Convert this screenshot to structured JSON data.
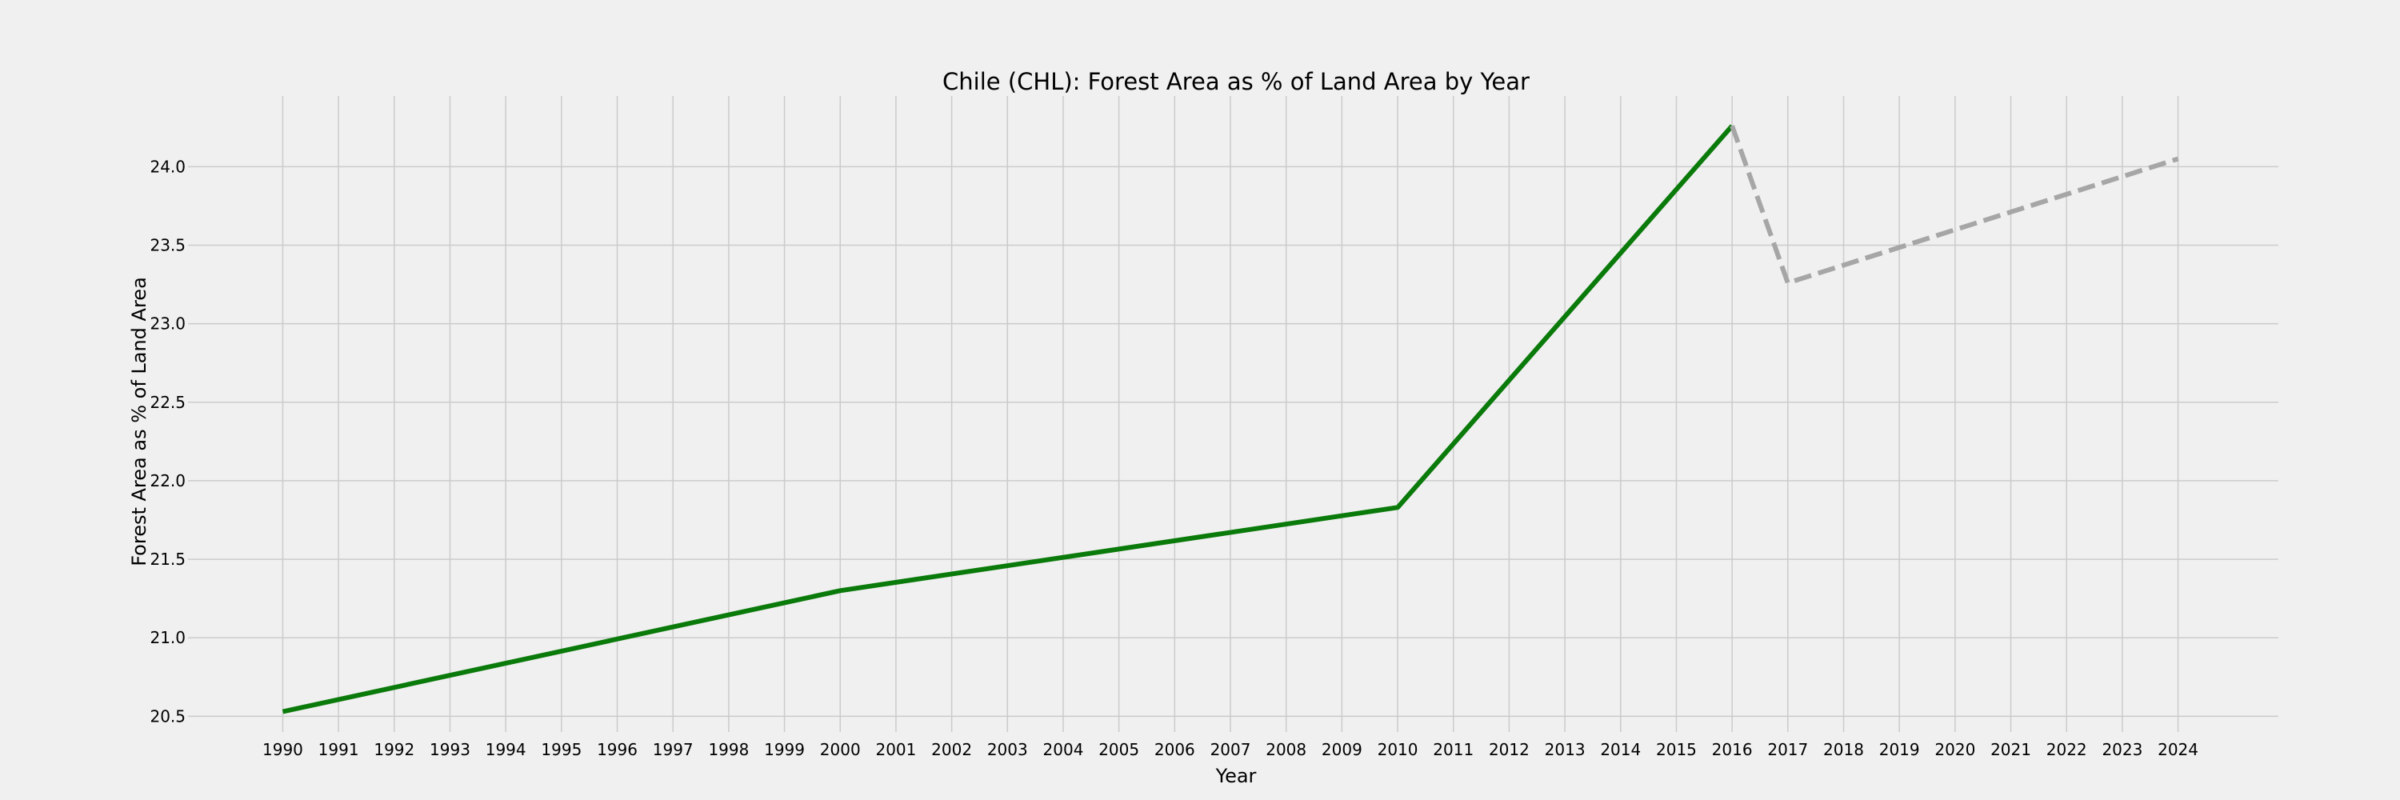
{
  "chart_data": {
    "type": "line",
    "title": "Chile (CHL): Forest Area as % of Land Area by Year",
    "xlabel": "Year",
    "ylabel": "Forest Area as % of Land Area",
    "xlim": [
      1988.3,
      2025.8
    ],
    "ylim": [
      20.4,
      24.45
    ],
    "x_ticks": [
      1990,
      1991,
      1992,
      1993,
      1994,
      1995,
      1996,
      1997,
      1998,
      1999,
      2000,
      2001,
      2002,
      2003,
      2004,
      2005,
      2006,
      2007,
      2008,
      2009,
      2010,
      2011,
      2012,
      2013,
      2014,
      2015,
      2016,
      2017,
      2018,
      2019,
      2020,
      2021,
      2022,
      2023,
      2024
    ],
    "y_ticks": [
      20.5,
      21.0,
      21.5,
      22.0,
      22.5,
      23.0,
      23.5,
      24.0
    ],
    "y_tick_labels": [
      "20.5",
      "21.0",
      "21.5",
      "22.0",
      "22.5",
      "23.0",
      "23.5",
      "24.0"
    ],
    "grid": true,
    "series": [
      {
        "style": "solid",
        "color": "#0a7a0a",
        "x": [
          1990,
          2000,
          2010,
          2016
        ],
        "y": [
          20.53,
          21.3,
          21.83,
          24.26
        ]
      },
      {
        "style": "dashed",
        "color": "#a6a6a6",
        "x": [
          2016,
          2017,
          2024
        ],
        "y": [
          24.26,
          23.26,
          24.05
        ]
      }
    ]
  }
}
